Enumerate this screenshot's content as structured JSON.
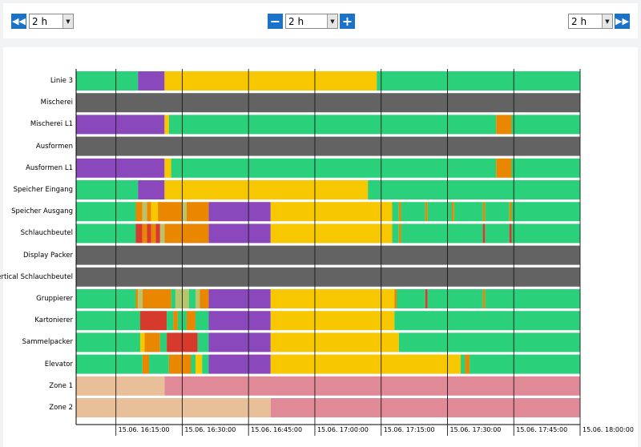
{
  "toolbar": {
    "left_select_value": "2 h",
    "center_select_value": "2 h",
    "right_select_value": "2 h",
    "icons": {
      "back": "rewind-icon",
      "minus": "minus-icon",
      "plus": "plus-icon",
      "forward": "fast-forward-icon"
    }
  },
  "chart_data": {
    "type": "timeline",
    "x_ticks": [
      "15.06. 16:15:00",
      "15.06. 16:30:00",
      "15.06. 16:45:00",
      "15.06. 17:00:00",
      "15.06. 17:15:00",
      "15.06. 17:30:00",
      "15.06. 17:45:00",
      "15.06. 18:00:00"
    ],
    "x_range": [
      "16:06",
      "18:00"
    ],
    "colors": {
      "green": "#2ad07a",
      "purple": "#8a48bc",
      "yellow": "#f7c700",
      "gray": "#636363",
      "orange": "#e98800",
      "red": "#d63a2c",
      "tan": "#e8bf98",
      "pink": "#df8a96",
      "olive": "#b9c46a"
    },
    "rows": [
      {
        "label": "Linie 3",
        "segments": [
          [
            0,
            14,
            "green"
          ],
          [
            14,
            20,
            "purple"
          ],
          [
            20,
            68,
            "yellow"
          ],
          [
            68,
            114,
            "green"
          ]
        ]
      },
      {
        "label": "Mischerei",
        "segments": [
          [
            0,
            114,
            "gray"
          ]
        ]
      },
      {
        "label": "Mischerei L1",
        "segments": [
          [
            0,
            20,
            "purple"
          ],
          [
            20,
            21,
            "yellow"
          ],
          [
            21,
            95,
            "green"
          ],
          [
            95,
            98.5,
            "orange"
          ],
          [
            98.5,
            114,
            "green"
          ]
        ]
      },
      {
        "label": "Ausformen",
        "segments": [
          [
            0,
            114,
            "gray"
          ]
        ]
      },
      {
        "label": "Ausformen L1",
        "segments": [
          [
            0,
            20,
            "purple"
          ],
          [
            20,
            21.5,
            "yellow"
          ],
          [
            21.5,
            95,
            "green"
          ],
          [
            95,
            98.5,
            "orange"
          ],
          [
            98.5,
            114,
            "green"
          ]
        ]
      },
      {
        "label": "Speicher Eingang",
        "segments": [
          [
            0,
            14,
            "green"
          ],
          [
            14,
            20,
            "purple"
          ],
          [
            20,
            66,
            "yellow"
          ],
          [
            66,
            114,
            "green"
          ]
        ]
      },
      {
        "label": "Speicher Ausgang",
        "segments": [
          [
            0,
            13.5,
            "green"
          ],
          [
            13.5,
            15,
            "orange"
          ],
          [
            15,
            16,
            "olive"
          ],
          [
            16,
            17,
            "orange"
          ],
          [
            17,
            18.5,
            "yellow"
          ],
          [
            18.5,
            24,
            "orange"
          ],
          [
            24,
            25,
            "olive"
          ],
          [
            25,
            30,
            "orange"
          ],
          [
            30,
            44,
            "purple"
          ],
          [
            44,
            71.5,
            "yellow"
          ],
          [
            71.5,
            73,
            "green"
          ],
          [
            73,
            73.5,
            "orange"
          ],
          [
            73.5,
            79,
            "green"
          ],
          [
            79,
            79.5,
            "orange"
          ],
          [
            79.5,
            85,
            "green"
          ],
          [
            85,
            85.5,
            "orange"
          ],
          [
            85.5,
            92,
            "green"
          ],
          [
            92,
            92.5,
            "orange"
          ],
          [
            92.5,
            98,
            "green"
          ],
          [
            98,
            98.5,
            "orange"
          ],
          [
            98.5,
            114,
            "green"
          ]
        ]
      },
      {
        "label": "Schlauchbeutel",
        "segments": [
          [
            0,
            13.5,
            "green"
          ],
          [
            13.5,
            15,
            "red"
          ],
          [
            15,
            16,
            "orange"
          ],
          [
            16,
            17,
            "red"
          ],
          [
            17,
            18,
            "orange"
          ],
          [
            18,
            19,
            "red"
          ],
          [
            19,
            20,
            "olive"
          ],
          [
            20,
            30,
            "orange"
          ],
          [
            30,
            44,
            "purple"
          ],
          [
            44,
            71.5,
            "yellow"
          ],
          [
            71.5,
            73,
            "green"
          ],
          [
            73,
            73.5,
            "orange"
          ],
          [
            73.5,
            92,
            "green"
          ],
          [
            92,
            92.5,
            "red"
          ],
          [
            92.5,
            98,
            "green"
          ],
          [
            98,
            98.5,
            "red"
          ],
          [
            98.5,
            114,
            "green"
          ]
        ]
      },
      {
        "label": "Display Packer",
        "segments": [
          [
            0,
            114,
            "gray"
          ]
        ]
      },
      {
        "label": "Vertical Schlauchbeutel",
        "segments": [
          [
            0,
            114,
            "gray"
          ]
        ]
      },
      {
        "label": "Gruppierer",
        "segments": [
          [
            0,
            13.5,
            "green"
          ],
          [
            13.5,
            14,
            "orange"
          ],
          [
            14,
            15,
            "olive"
          ],
          [
            15,
            21.5,
            "orange"
          ],
          [
            21.5,
            22.5,
            "green"
          ],
          [
            22.5,
            25.5,
            "olive"
          ],
          [
            25.5,
            27,
            "green"
          ],
          [
            27,
            28,
            "olive"
          ],
          [
            28,
            30,
            "orange"
          ],
          [
            30,
            44,
            "purple"
          ],
          [
            44,
            72,
            "yellow"
          ],
          [
            72,
            72.5,
            "orange"
          ],
          [
            72.5,
            79,
            "green"
          ],
          [
            79,
            79.5,
            "red"
          ],
          [
            79.5,
            92,
            "green"
          ],
          [
            92,
            92.5,
            "orange"
          ],
          [
            92.5,
            114,
            "green"
          ]
        ]
      },
      {
        "label": "Kartonierer",
        "segments": [
          [
            0,
            14.5,
            "green"
          ],
          [
            14.5,
            20.5,
            "red"
          ],
          [
            20.5,
            22,
            "green"
          ],
          [
            22,
            23,
            "orange"
          ],
          [
            23,
            25,
            "green"
          ],
          [
            25,
            27,
            "orange"
          ],
          [
            27,
            30,
            "green"
          ],
          [
            30,
            44,
            "purple"
          ],
          [
            44,
            72,
            "yellow"
          ],
          [
            72,
            114,
            "green"
          ]
        ]
      },
      {
        "label": "Sammelpacker",
        "segments": [
          [
            0,
            14.5,
            "green"
          ],
          [
            14.5,
            15.5,
            "yellow"
          ],
          [
            15.5,
            19,
            "orange"
          ],
          [
            19,
            20.5,
            "green"
          ],
          [
            20.5,
            27.5,
            "red"
          ],
          [
            27.5,
            30,
            "green"
          ],
          [
            30,
            44,
            "purple"
          ],
          [
            44,
            73,
            "yellow"
          ],
          [
            73,
            114,
            "green"
          ]
        ]
      },
      {
        "label": "Elevator",
        "segments": [
          [
            0,
            15,
            "green"
          ],
          [
            15,
            16.5,
            "orange"
          ],
          [
            16.5,
            21,
            "green"
          ],
          [
            21,
            26,
            "orange"
          ],
          [
            26,
            27,
            "green"
          ],
          [
            27,
            28.5,
            "yellow"
          ],
          [
            28.5,
            30,
            "green"
          ],
          [
            30,
            44,
            "purple"
          ],
          [
            44,
            87,
            "yellow"
          ],
          [
            87,
            88,
            "green"
          ],
          [
            88,
            89,
            "orange"
          ],
          [
            89,
            114,
            "green"
          ]
        ]
      },
      {
        "label": "Zone 1",
        "segments": [
          [
            0,
            20,
            "tan"
          ],
          [
            20,
            114,
            "pink"
          ]
        ]
      },
      {
        "label": "Zone 2",
        "segments": [
          [
            0,
            44,
            "tan"
          ],
          [
            44,
            114,
            "pink"
          ]
        ]
      }
    ]
  }
}
